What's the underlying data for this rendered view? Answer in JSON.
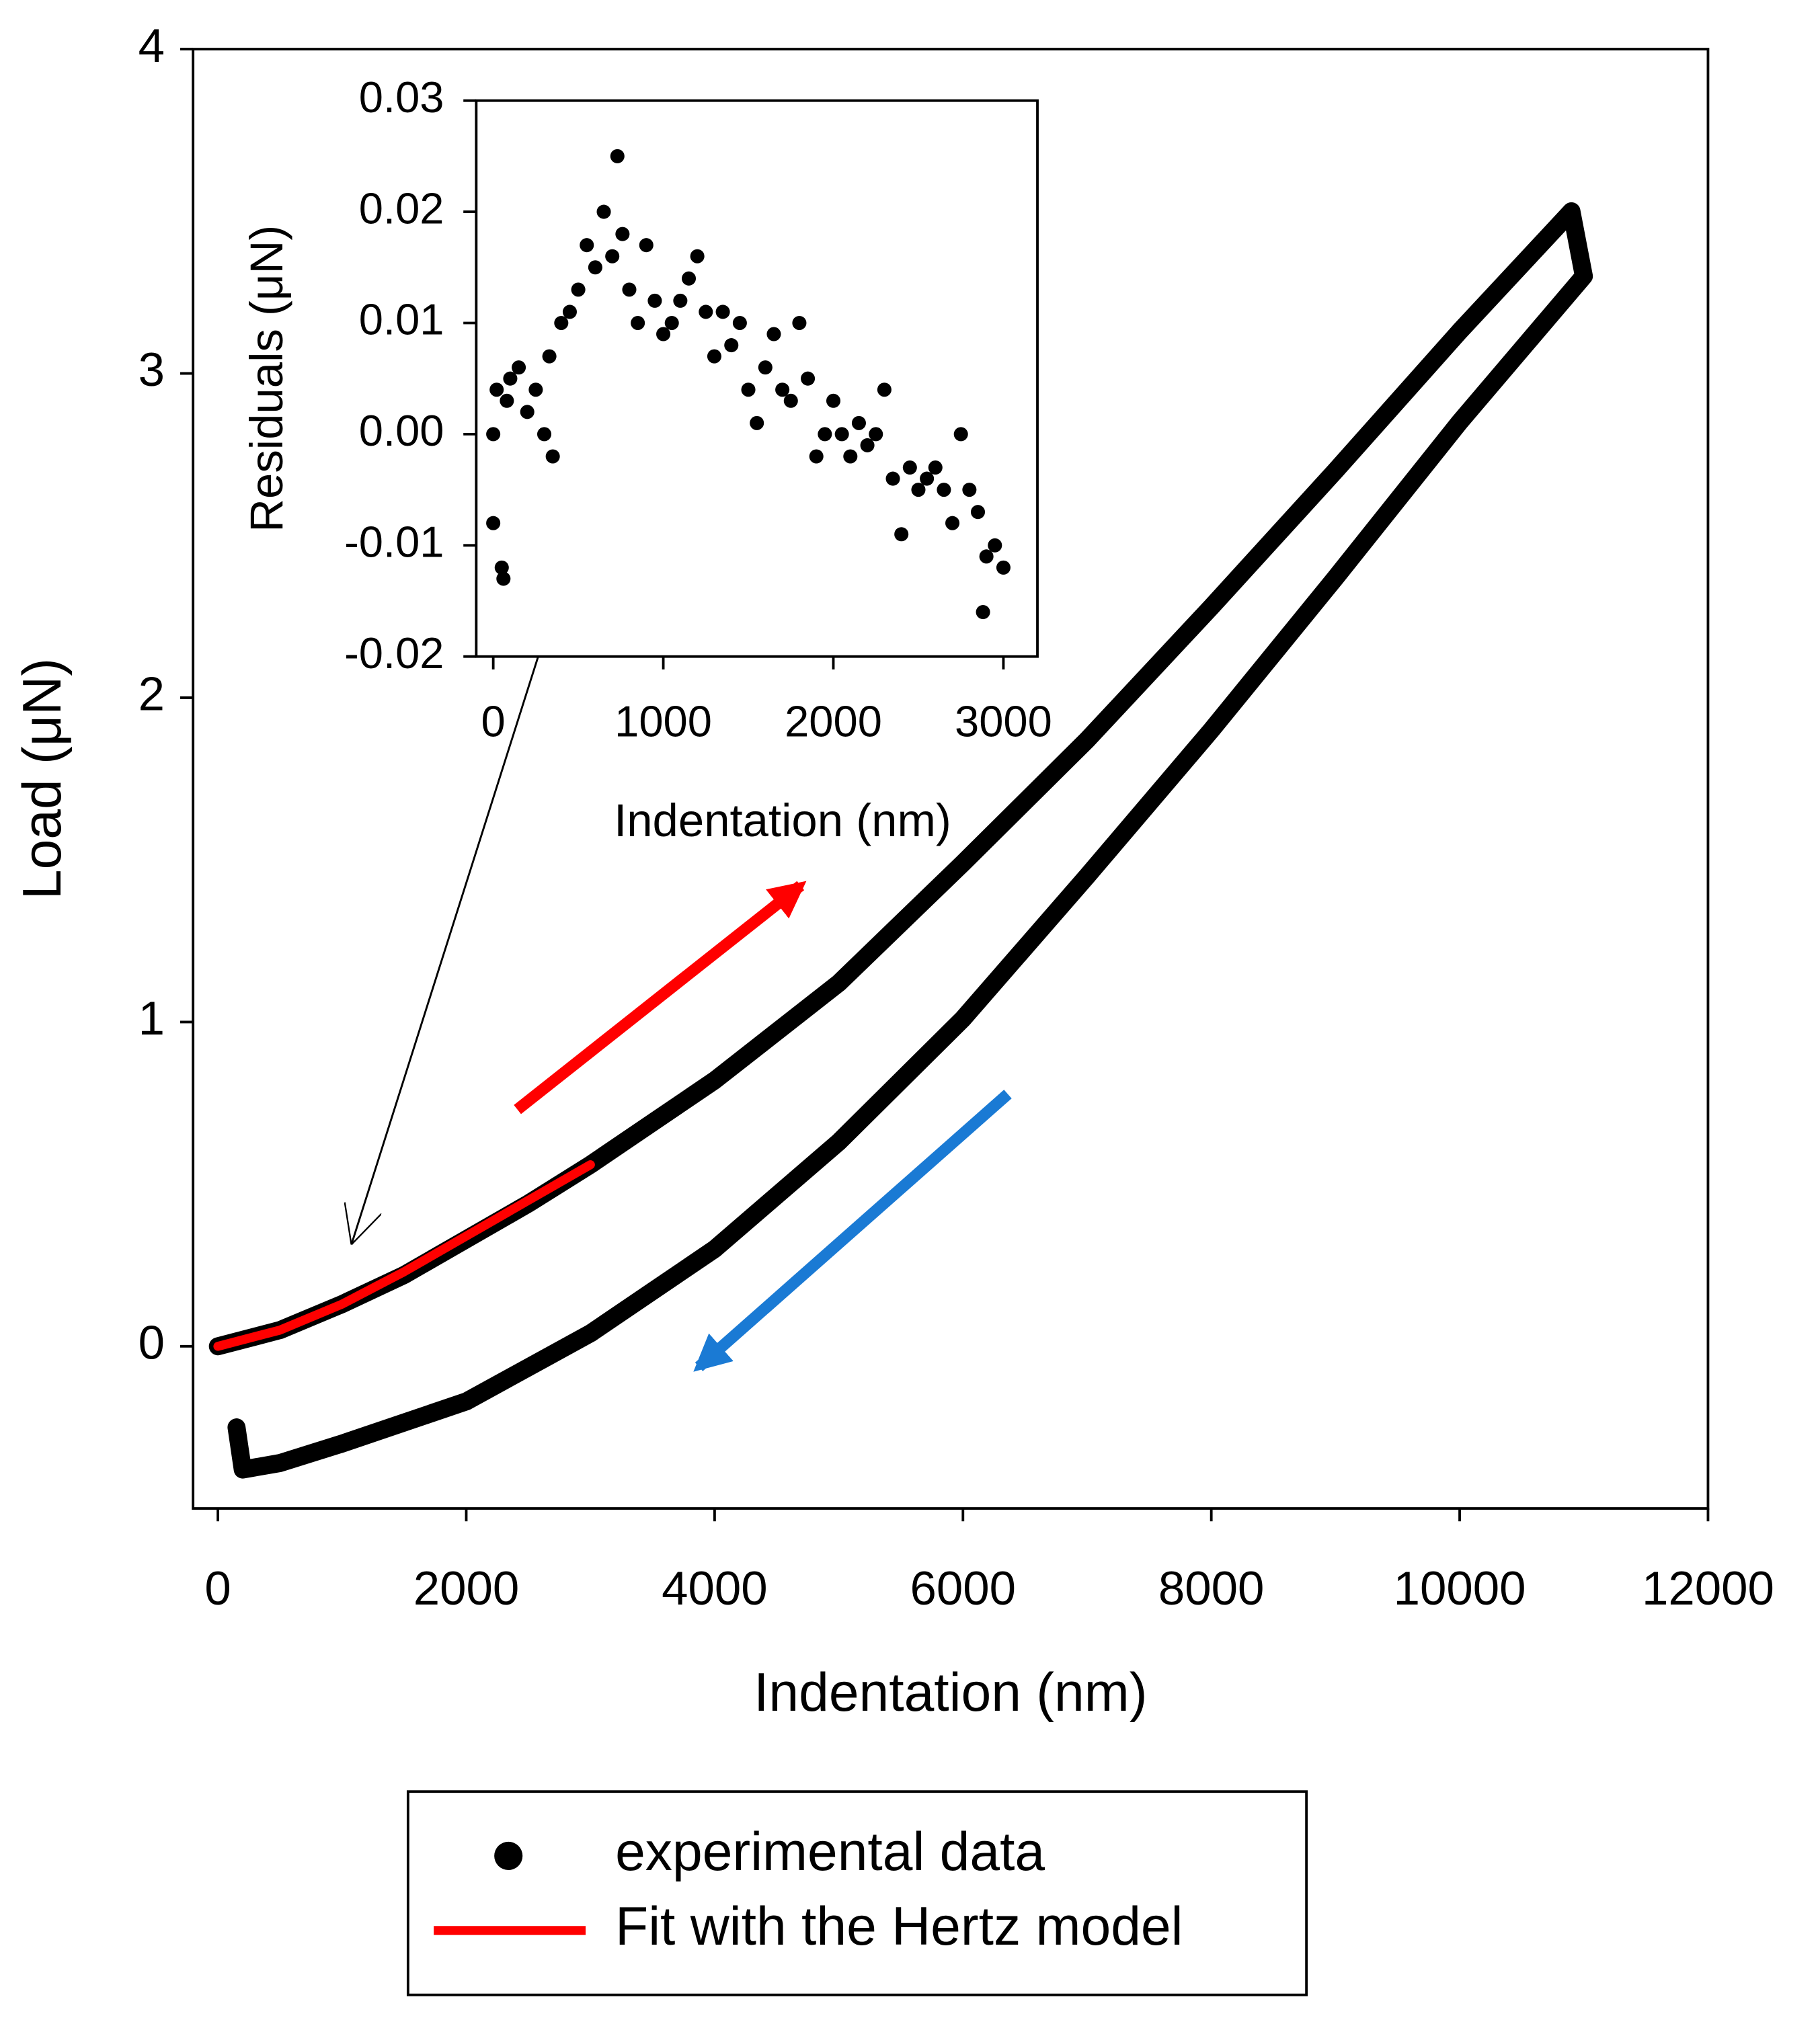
{
  "chart_data": [
    {
      "type": "scatter",
      "xlabel": "Indentation (nm)",
      "ylabel": "Load (μN)",
      "xlim": [
        -200,
        12000
      ],
      "ylim": [
        -0.5,
        4
      ],
      "xticks": [
        0,
        2000,
        4000,
        6000,
        8000,
        10000,
        12000
      ],
      "yticks": [
        0,
        1,
        2,
        3,
        4
      ],
      "series": [
        {
          "name": "experimental data",
          "color": "#000000",
          "style": "markers",
          "x": [
            0,
            500,
            1000,
            1500,
            2000,
            2500,
            3000,
            4000,
            5000,
            6000,
            7000,
            8000,
            9000,
            10000,
            10900,
            11000,
            10000,
            9000,
            8000,
            7000,
            6000,
            5000,
            4000,
            3000,
            2000,
            1000,
            500,
            200,
            150
          ],
          "values": [
            0,
            0.05,
            0.13,
            0.22,
            0.33,
            0.44,
            0.56,
            0.82,
            1.12,
            1.49,
            1.87,
            2.28,
            2.7,
            3.13,
            3.5,
            3.3,
            2.85,
            2.37,
            1.9,
            1.45,
            1.01,
            0.63,
            0.3,
            0.04,
            -0.17,
            -0.3,
            -0.36,
            -0.38,
            -0.25
          ]
        },
        {
          "name": "Fit with the Hertz model",
          "color": "#ff0000",
          "style": "line",
          "x": [
            0,
            500,
            1000,
            1500,
            2000,
            2500,
            3000
          ],
          "values": [
            0,
            0.05,
            0.13,
            0.23,
            0.34,
            0.45,
            0.56
          ]
        }
      ]
    },
    {
      "type": "scatter",
      "xlabel": "Indentation (nm)",
      "ylabel": "Residuals (μN)",
      "xlim": [
        -100,
        3200
      ],
      "ylim": [
        -0.02,
        0.03
      ],
      "xticks": [
        0,
        1000,
        2000,
        3000
      ],
      "yticks": [
        -0.02,
        -0.01,
        {
          "value": 0,
          "label": "0.00"
        },
        0.01,
        0.02,
        0.03
      ],
      "series": [
        {
          "color": "#000000",
          "style": "markers",
          "x": [
            0,
            0,
            20,
            50,
            60,
            80,
            100,
            150,
            200,
            250,
            300,
            330,
            350,
            400,
            450,
            500,
            550,
            600,
            650,
            700,
            730,
            760,
            800,
            850,
            900,
            950,
            1000,
            1050,
            1100,
            1150,
            1200,
            1250,
            1300,
            1350,
            1400,
            1450,
            1500,
            1550,
            1600,
            1650,
            1700,
            1750,
            1800,
            1850,
            1900,
            1950,
            2000,
            2050,
            2100,
            2150,
            2200,
            2250,
            2300,
            2350,
            2400,
            2450,
            2500,
            2550,
            2600,
            2650,
            2700,
            2750,
            2800,
            2850,
            2880,
            2900,
            2950,
            3000
          ],
          "values": [
            0,
            -0.008,
            0.004,
            -0.012,
            -0.013,
            0.003,
            0.005,
            0.006,
            0.002,
            0.004,
            0,
            0.007,
            -0.002,
            0.01,
            0.011,
            0.013,
            0.017,
            0.015,
            0.02,
            0.016,
            0.025,
            0.018,
            0.013,
            0.01,
            0.017,
            0.012,
            0.009,
            0.01,
            0.012,
            0.014,
            0.016,
            0.011,
            0.007,
            0.011,
            0.008,
            0.01,
            0.004,
            0.001,
            0.006,
            0.009,
            0.004,
            0.003,
            0.01,
            0.005,
            -0.002,
            0,
            0.003,
            0,
            -0.002,
            0.001,
            -0.001,
            0,
            0.004,
            -0.004,
            -0.009,
            -0.003,
            -0.005,
            -0.004,
            -0.003,
            -0.005,
            -0.008,
            0,
            -0.005,
            -0.007,
            -0.016,
            -0.011,
            -0.01,
            -0.012
          ]
        }
      ]
    }
  ]
}
